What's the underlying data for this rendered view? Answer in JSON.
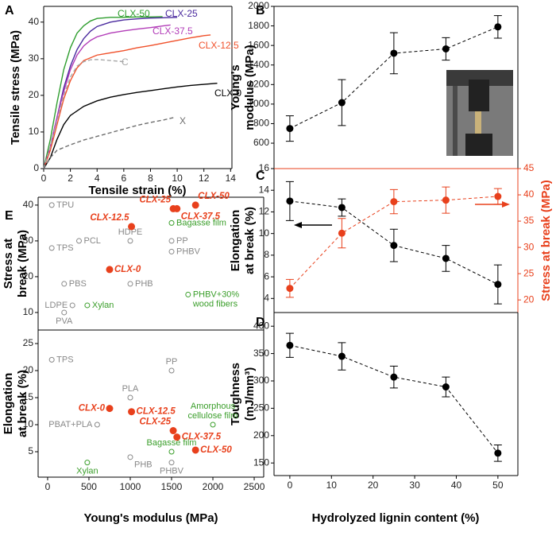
{
  "chart_data": [
    {
      "type": "line",
      "panel": "A",
      "xlabel": "Tensile strain (%)",
      "ylabel": "Tensile stress (MPa)",
      "xlim": [
        0,
        14.1
      ],
      "ylim": [
        0,
        44.3
      ],
      "xticks": [
        0,
        2,
        4,
        6,
        8,
        10,
        12,
        14
      ],
      "yticks": [
        0,
        10,
        20,
        30,
        40
      ],
      "series": [
        {
          "name": "CLX-50",
          "color": "#2f9e2f",
          "dashed": false,
          "x": [
            0,
            0.5,
            1,
            1.5,
            2,
            2.5,
            3,
            3.5,
            4,
            5,
            6,
            7,
            8,
            8.9
          ],
          "values": [
            0,
            8,
            18,
            27,
            33,
            37,
            39,
            40.3,
            41,
            41.3,
            41.3,
            41.4,
            41.4,
            41.5
          ]
        },
        {
          "name": "CLX-25",
          "color": "#4a2a9e",
          "dashed": false,
          "x": [
            0,
            0.5,
            1,
            1.5,
            2,
            2.5,
            3,
            3.5,
            4,
            5,
            6,
            7,
            8,
            9,
            10
          ],
          "values": [
            0,
            6,
            14,
            22,
            28,
            32.5,
            35.5,
            37.5,
            38.8,
            40,
            40.6,
            40.9,
            41.1,
            41.2,
            41.3
          ]
        },
        {
          "name": "CLX-37.5",
          "color": "#b23cb8",
          "dashed": false,
          "x": [
            0,
            0.5,
            1,
            1.5,
            2,
            2.5,
            3,
            3.5,
            4,
            5,
            6,
            7,
            8,
            9,
            9.5
          ],
          "values": [
            0,
            6,
            14,
            21,
            27,
            31,
            33.5,
            35,
            36,
            37,
            37.6,
            38.1,
            38.5,
            39,
            39.2
          ]
        },
        {
          "name": "CLX-12.5",
          "color": "#f0502a",
          "dashed": false,
          "x": [
            0,
            0.5,
            1,
            1.5,
            2,
            2.5,
            3,
            4,
            5,
            6,
            7,
            8,
            9,
            10,
            11,
            12,
            12.5
          ],
          "values": [
            0,
            5,
            12,
            19,
            24,
            27.5,
            29.5,
            31,
            31.6,
            32.2,
            33,
            33.6,
            34.3,
            35,
            35.7,
            36.3,
            36.5
          ]
        },
        {
          "name": "C",
          "color": "#a8a8a8",
          "dashed": true,
          "x": [
            0,
            0.5,
            1,
            1.5,
            2,
            2.5,
            3,
            3.5,
            4,
            5,
            6
          ],
          "values": [
            0,
            6,
            13,
            20,
            25,
            28,
            29.2,
            29.7,
            29.8,
            29.5,
            29.2
          ]
        },
        {
          "name": "CLX-0",
          "color": "#000000",
          "dashed": false,
          "x": [
            0,
            0.5,
            1,
            1.5,
            2,
            3,
            4,
            5,
            6,
            7,
            8,
            9,
            10,
            11,
            12,
            13
          ],
          "values": [
            0,
            3,
            8,
            12,
            14.5,
            17,
            18.5,
            19.5,
            20.2,
            20.8,
            21.3,
            21.8,
            22.3,
            22.7,
            23,
            23.3
          ]
        },
        {
          "name": "X",
          "color": "#6e6e6e",
          "dashed": true,
          "x": [
            0,
            0.5,
            1,
            2,
            3,
            4,
            5,
            6,
            7,
            8,
            9,
            9.8
          ],
          "values": [
            0,
            3,
            5,
            6.5,
            7.8,
            8.8,
            9.8,
            10.8,
            11.8,
            12.6,
            13.3,
            14
          ]
        }
      ]
    },
    {
      "type": "errorline",
      "panel": "B",
      "ylabel": [
        "Young's",
        "modulus (MPa)"
      ],
      "xlim": [
        -3.8,
        54.8
      ],
      "ylim": [
        340,
        2000
      ],
      "yticks": [
        600,
        800,
        1000,
        1200,
        1400,
        1600,
        1800,
        2000
      ],
      "x": [
        0,
        12.5,
        25,
        37.5,
        50
      ],
      "series": [
        {
          "color": "#000000",
          "values": [
            750,
            1015,
            1520,
            1565,
            1790
          ],
          "errors": [
            130,
            235,
            210,
            115,
            115
          ]
        }
      ]
    },
    {
      "type": "errorline",
      "panel": "C",
      "ylabel": [
        "Elongation",
        "at break (%)"
      ],
      "y2label": "Stress at break (MPa)",
      "xlim": [
        -3.8,
        54.8
      ],
      "ylim": [
        2.7,
        16
      ],
      "yticks": [
        4,
        6,
        8,
        10,
        12,
        14,
        16
      ],
      "y2lim": [
        17.6,
        45
      ],
      "y2ticks": [
        20,
        25,
        30,
        35,
        40,
        45
      ],
      "y2color": "#e8401c",
      "x": [
        0,
        12.5,
        25,
        37.5,
        50
      ],
      "series": [
        {
          "color": "#000000",
          "values": [
            13,
            12.4,
            8.9,
            7.7,
            5.3
          ],
          "errors": [
            1.8,
            0.8,
            1.5,
            1.2,
            1.8
          ]
        },
        {
          "color": "#e8401c",
          "axis": "y2",
          "values": [
            22.2,
            32.7,
            38.7,
            39,
            39.7
          ],
          "errors": [
            1.7,
            2.8,
            2.3,
            2.5,
            1.5
          ]
        }
      ]
    },
    {
      "type": "errorline",
      "panel": "D",
      "ylabel": [
        "Toughness",
        "(mJ/mm³)"
      ],
      "xlabel": "Hydrolyzed lignin content (%)",
      "xlim": [
        -3.8,
        54.8
      ],
      "ylim": [
        127,
        425
      ],
      "yticks": [
        150,
        200,
        250,
        300,
        350,
        400
      ],
      "xticks": [
        0,
        10,
        20,
        30,
        40,
        50
      ],
      "x": [
        0,
        12.5,
        25,
        37.5,
        50
      ],
      "series": [
        {
          "color": "#000000",
          "values": [
            365,
            345,
            307,
            289,
            168
          ],
          "errors": [
            22,
            25,
            20,
            18,
            15
          ]
        }
      ]
    },
    {
      "type": "scatter",
      "panel": "E",
      "ylabel": [
        "Stress at",
        "break (MPa)"
      ],
      "xlim": [
        -115,
        2615
      ],
      "ylim": [
        5.1,
        42.2
      ],
      "yticks": [
        10,
        20,
        30,
        40
      ],
      "series": [
        {
          "color": "#888888",
          "filled": false,
          "x": [
            50,
            50,
            380,
            200,
            300,
            200,
            1000,
            1000,
            1500,
            1500
          ],
          "values": [
            40,
            28,
            30,
            18,
            12,
            10,
            30,
            18,
            30,
            27
          ],
          "labels": [
            "TPU",
            "TPS",
            "PCL",
            "PBS",
            "LDPE",
            "PVA",
            "HDPE",
            "PHB",
            "PP",
            "PHBV"
          ]
        },
        {
          "color": "#3a9e2a",
          "filled": false,
          "x": [
            480,
            1500,
            1700
          ],
          "values": [
            12,
            35,
            15
          ],
          "labels": [
            "Xylan",
            "Bagasse film",
            [
              "PHBV+30%",
              "wood fibers"
            ]
          ]
        },
        {
          "color": "#e8401c",
          "filled": true,
          "x": [
            750,
            1015,
            1520,
            1565,
            1790
          ],
          "values": [
            22,
            34,
            39,
            39,
            40
          ],
          "labels": [
            "CLX-0",
            "CLX-12.5",
            "CLX-25",
            "CLX-37.5",
            "CLX-50"
          ]
        }
      ]
    },
    {
      "type": "scatter",
      "ylabel": [
        "Elongation",
        "at break (%)"
      ],
      "xlabel": "Young's modulus (MPa)",
      "xlim": [
        -115,
        2615
      ],
      "ylim": [
        0.3,
        27.5
      ],
      "yticks": [
        5,
        10,
        15,
        20,
        25
      ],
      "xticks": [
        0,
        500,
        1000,
        1500,
        2000,
        2500
      ],
      "series": [
        {
          "color": "#888888",
          "filled": false,
          "x": [
            50,
            1500,
            1000,
            600,
            1000,
            1500
          ],
          "values": [
            22,
            20,
            15,
            10,
            4,
            3
          ],
          "labels": [
            "TPS",
            "PP",
            "PLA",
            "PBAT+PLA",
            "PHB",
            "PHBV"
          ]
        },
        {
          "color": "#3a9e2a",
          "filled": false,
          "x": [
            2000,
            1500,
            480
          ],
          "values": [
            10,
            5,
            3
          ],
          "labels": [
            [
              "Amorphous",
              "cellulose film"
            ],
            "Bagasse film",
            "Xylan"
          ]
        },
        {
          "color": "#e8401c",
          "filled": true,
          "x": [
            750,
            1015,
            1520,
            1565,
            1790
          ],
          "values": [
            13,
            12.4,
            8.9,
            7.7,
            5.3
          ],
          "labels": [
            "CLX-0",
            "CLX-12.5",
            "CLX-25",
            "CLX-37.5",
            "CLX-50"
          ]
        }
      ]
    }
  ]
}
